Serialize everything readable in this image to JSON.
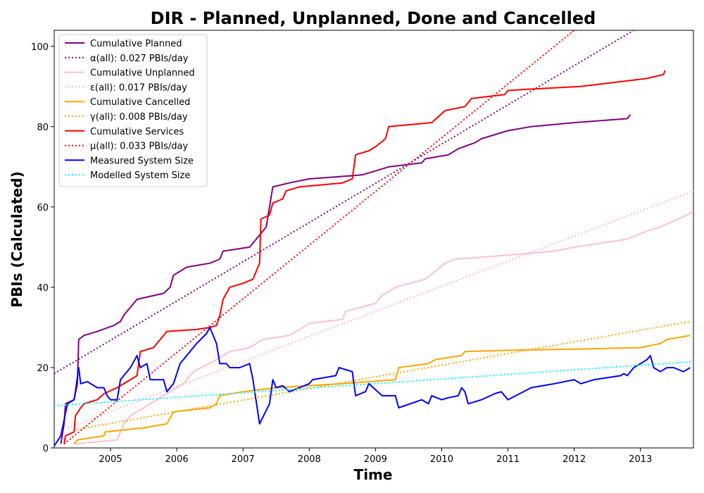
{
  "chart_data": {
    "type": "line",
    "title": "DIR - Planned, Unplanned, Done  and Cancelled",
    "xlabel": "Time",
    "ylabel": "PBIs (Calculated)",
    "xlim": [
      2004.15,
      2013.8
    ],
    "ylim": [
      0,
      104
    ],
    "x_ticks": [
      2005,
      2006,
      2007,
      2008,
      2009,
      2010,
      2011,
      2012,
      2013
    ],
    "y_ticks": [
      0,
      20,
      40,
      60,
      80,
      100
    ],
    "grid": false,
    "legend_position": "top-left",
    "series": [
      {
        "name": "Cumulative Planned",
        "color": "#800080",
        "style": "solid",
        "points": [
          [
            2004.25,
            1
          ],
          [
            2004.3,
            6
          ],
          [
            2004.32,
            11
          ],
          [
            2004.45,
            12
          ],
          [
            2004.5,
            16
          ],
          [
            2004.52,
            27
          ],
          [
            2004.6,
            28
          ],
          [
            2004.8,
            29
          ],
          [
            2005.05,
            30.5
          ],
          [
            2005.15,
            31.5
          ],
          [
            2005.2,
            33
          ],
          [
            2005.3,
            35
          ],
          [
            2005.4,
            37
          ],
          [
            2005.8,
            38.5
          ],
          [
            2005.9,
            40
          ],
          [
            2005.95,
            43
          ],
          [
            2006.15,
            45
          ],
          [
            2006.5,
            46
          ],
          [
            2006.65,
            47
          ],
          [
            2006.7,
            49
          ],
          [
            2007.1,
            50
          ],
          [
            2007.15,
            51
          ],
          [
            2007.25,
            53
          ],
          [
            2007.35,
            55
          ],
          [
            2007.45,
            65
          ],
          [
            2007.7,
            66
          ],
          [
            2008.0,
            67
          ],
          [
            2008.8,
            68
          ],
          [
            2009.2,
            70
          ],
          [
            2009.7,
            71
          ],
          [
            2009.75,
            72
          ],
          [
            2010.1,
            73
          ],
          [
            2010.25,
            74.5
          ],
          [
            2010.5,
            76
          ],
          [
            2010.6,
            77
          ],
          [
            2011.0,
            79
          ],
          [
            2011.35,
            80
          ],
          [
            2012.0,
            81
          ],
          [
            2012.8,
            82
          ],
          [
            2012.85,
            83
          ]
        ]
      },
      {
        "name": "α(all): 0.027 PBIs/day",
        "color": "#800080",
        "style": "dotted",
        "points": [
          [
            2004.15,
            18.5
          ],
          [
            2012.9,
            104
          ]
        ]
      },
      {
        "name": "Cumulative Unplanned",
        "color": "#ffc0cb",
        "style": "solid",
        "points": [
          [
            2004.45,
            1
          ],
          [
            2005.1,
            2
          ],
          [
            2005.2,
            6
          ],
          [
            2005.3,
            8
          ],
          [
            2005.6,
            11
          ],
          [
            2006.1,
            16
          ],
          [
            2006.25,
            19
          ],
          [
            2006.6,
            22
          ],
          [
            2006.8,
            24
          ],
          [
            2007.1,
            25
          ],
          [
            2007.3,
            27
          ],
          [
            2007.7,
            28
          ],
          [
            2008.0,
            31
          ],
          [
            2008.5,
            32
          ],
          [
            2008.55,
            34
          ],
          [
            2009.0,
            36
          ],
          [
            2009.1,
            38
          ],
          [
            2009.3,
            40
          ],
          [
            2009.75,
            42
          ],
          [
            2009.9,
            44
          ],
          [
            2010.05,
            46
          ],
          [
            2010.2,
            47
          ],
          [
            2011.0,
            48
          ],
          [
            2011.7,
            49
          ],
          [
            2012.0,
            50
          ],
          [
            2012.4,
            51
          ],
          [
            2012.8,
            52
          ],
          [
            2013.1,
            54
          ],
          [
            2013.3,
            55
          ],
          [
            2013.7,
            58
          ],
          [
            2013.8,
            59
          ]
        ]
      },
      {
        "name": "ε(all): 0.017 PBIs/day",
        "color": "#ffb6c1",
        "style": "dotted",
        "points": [
          [
            2004.35,
            5
          ],
          [
            2013.8,
            64
          ]
        ]
      },
      {
        "name": "Cumulative Cancelled",
        "color": "#ffa500",
        "style": "solid",
        "points": [
          [
            2004.45,
            1
          ],
          [
            2004.5,
            2
          ],
          [
            2004.9,
            3
          ],
          [
            2004.92,
            4
          ],
          [
            2005.5,
            5
          ],
          [
            2005.85,
            6
          ],
          [
            2005.95,
            9
          ],
          [
            2006.5,
            10
          ],
          [
            2006.6,
            11
          ],
          [
            2006.65,
            13
          ],
          [
            2007.0,
            14
          ],
          [
            2007.5,
            15
          ],
          [
            2008.5,
            16
          ],
          [
            2009.3,
            17
          ],
          [
            2009.35,
            20
          ],
          [
            2009.8,
            21
          ],
          [
            2009.9,
            22
          ],
          [
            2010.3,
            23
          ],
          [
            2010.35,
            24
          ],
          [
            2011.0,
            24.3
          ],
          [
            2012.0,
            24.6
          ],
          [
            2013.0,
            25
          ],
          [
            2013.3,
            26
          ],
          [
            2013.4,
            27
          ],
          [
            2013.75,
            28
          ]
        ]
      },
      {
        "name": "γ(all): 0.008 PBIs/day",
        "color": "#ffa500",
        "style": "dotted",
        "points": [
          [
            2004.45,
            4.5
          ],
          [
            2013.75,
            31.5
          ]
        ]
      },
      {
        "name": "Cumulative Services",
        "color": "#ff0000",
        "style": "solid",
        "points": [
          [
            2004.3,
            1
          ],
          [
            2004.32,
            3
          ],
          [
            2004.45,
            4
          ],
          [
            2004.47,
            8
          ],
          [
            2004.55,
            10
          ],
          [
            2004.6,
            11
          ],
          [
            2004.8,
            12
          ],
          [
            2004.9,
            13.5
          ],
          [
            2005.1,
            15
          ],
          [
            2005.3,
            17
          ],
          [
            2005.4,
            18
          ],
          [
            2005.45,
            24
          ],
          [
            2005.65,
            25
          ],
          [
            2005.75,
            27
          ],
          [
            2005.85,
            29
          ],
          [
            2006.3,
            29.5
          ],
          [
            2006.5,
            30
          ],
          [
            2006.6,
            30.5
          ],
          [
            2006.65,
            33
          ],
          [
            2006.7,
            37
          ],
          [
            2006.8,
            40
          ],
          [
            2007.0,
            41
          ],
          [
            2007.15,
            42
          ],
          [
            2007.25,
            46
          ],
          [
            2007.27,
            57
          ],
          [
            2007.4,
            58
          ],
          [
            2007.45,
            61
          ],
          [
            2007.6,
            62
          ],
          [
            2007.65,
            64
          ],
          [
            2007.85,
            65
          ],
          [
            2008.5,
            66
          ],
          [
            2008.65,
            67
          ],
          [
            2008.7,
            73
          ],
          [
            2008.9,
            74
          ],
          [
            2009.0,
            75
          ],
          [
            2009.15,
            77
          ],
          [
            2009.2,
            80
          ],
          [
            2009.85,
            81
          ],
          [
            2010.05,
            84
          ],
          [
            2010.35,
            85
          ],
          [
            2010.45,
            87
          ],
          [
            2010.95,
            88
          ],
          [
            2011.0,
            89
          ],
          [
            2011.5,
            89.5
          ],
          [
            2012.1,
            90
          ],
          [
            2013.1,
            92
          ],
          [
            2013.35,
            93
          ],
          [
            2013.37,
            94
          ]
        ]
      },
      {
        "name": "μ(all): 0.033 PBIs/day",
        "color": "#ff0000",
        "style": "dotted",
        "points": [
          [
            2004.3,
            1
          ],
          [
            2012.0,
            104
          ]
        ]
      },
      {
        "name": "Measured System Size",
        "color": "#0000ff",
        "style": "solid",
        "points": [
          [
            2004.15,
            0.5
          ],
          [
            2004.25,
            3
          ],
          [
            2004.3,
            7
          ],
          [
            2004.35,
            11
          ],
          [
            2004.45,
            12
          ],
          [
            2004.47,
            14
          ],
          [
            2004.52,
            20
          ],
          [
            2004.55,
            16
          ],
          [
            2004.65,
            16.5
          ],
          [
            2004.8,
            15
          ],
          [
            2004.9,
            15
          ],
          [
            2004.95,
            13
          ],
          [
            2005.0,
            12
          ],
          [
            2005.1,
            12
          ],
          [
            2005.15,
            17
          ],
          [
            2005.3,
            20
          ],
          [
            2005.4,
            23
          ],
          [
            2005.45,
            20
          ],
          [
            2005.55,
            21
          ],
          [
            2005.6,
            17
          ],
          [
            2005.8,
            17
          ],
          [
            2005.85,
            14
          ],
          [
            2005.95,
            16
          ],
          [
            2006.05,
            21
          ],
          [
            2006.15,
            23
          ],
          [
            2006.3,
            26
          ],
          [
            2006.45,
            28.5
          ],
          [
            2006.5,
            30
          ],
          [
            2006.6,
            26
          ],
          [
            2006.65,
            21
          ],
          [
            2006.75,
            21
          ],
          [
            2006.8,
            20
          ],
          [
            2006.95,
            20
          ],
          [
            2007.1,
            21
          ],
          [
            2007.15,
            17
          ],
          [
            2007.25,
            6
          ],
          [
            2007.4,
            11
          ],
          [
            2007.45,
            17
          ],
          [
            2007.5,
            15
          ],
          [
            2007.6,
            15.5
          ],
          [
            2007.7,
            14
          ],
          [
            2007.85,
            15
          ],
          [
            2008.0,
            16
          ],
          [
            2008.05,
            17
          ],
          [
            2008.4,
            18
          ],
          [
            2008.45,
            20
          ],
          [
            2008.65,
            19
          ],
          [
            2008.7,
            13
          ],
          [
            2008.85,
            14
          ],
          [
            2008.9,
            16
          ],
          [
            2009.1,
            13
          ],
          [
            2009.3,
            13
          ],
          [
            2009.35,
            10
          ],
          [
            2009.7,
            12
          ],
          [
            2009.8,
            11
          ],
          [
            2009.85,
            13
          ],
          [
            2010.0,
            12
          ],
          [
            2010.1,
            12.5
          ],
          [
            2010.25,
            13
          ],
          [
            2010.3,
            15
          ],
          [
            2010.35,
            14
          ],
          [
            2010.4,
            11
          ],
          [
            2010.6,
            12
          ],
          [
            2010.8,
            13.5
          ],
          [
            2010.9,
            14
          ],
          [
            2011.0,
            12
          ],
          [
            2011.35,
            15
          ],
          [
            2011.7,
            16
          ],
          [
            2012.0,
            17
          ],
          [
            2012.1,
            16
          ],
          [
            2012.3,
            17
          ],
          [
            2012.7,
            18
          ],
          [
            2012.75,
            18.5
          ],
          [
            2012.8,
            18
          ],
          [
            2012.9,
            20
          ],
          [
            2013.0,
            21
          ],
          [
            2013.1,
            22
          ],
          [
            2013.15,
            23
          ],
          [
            2013.2,
            20
          ],
          [
            2013.3,
            19
          ],
          [
            2013.4,
            20
          ],
          [
            2013.5,
            20
          ],
          [
            2013.65,
            19
          ],
          [
            2013.75,
            20
          ]
        ]
      },
      {
        "name": "Modelled System Size",
        "color": "#00ffff",
        "style": "dotted",
        "points": [
          [
            2004.15,
            10.5
          ],
          [
            2013.8,
            21.5
          ]
        ]
      }
    ]
  }
}
